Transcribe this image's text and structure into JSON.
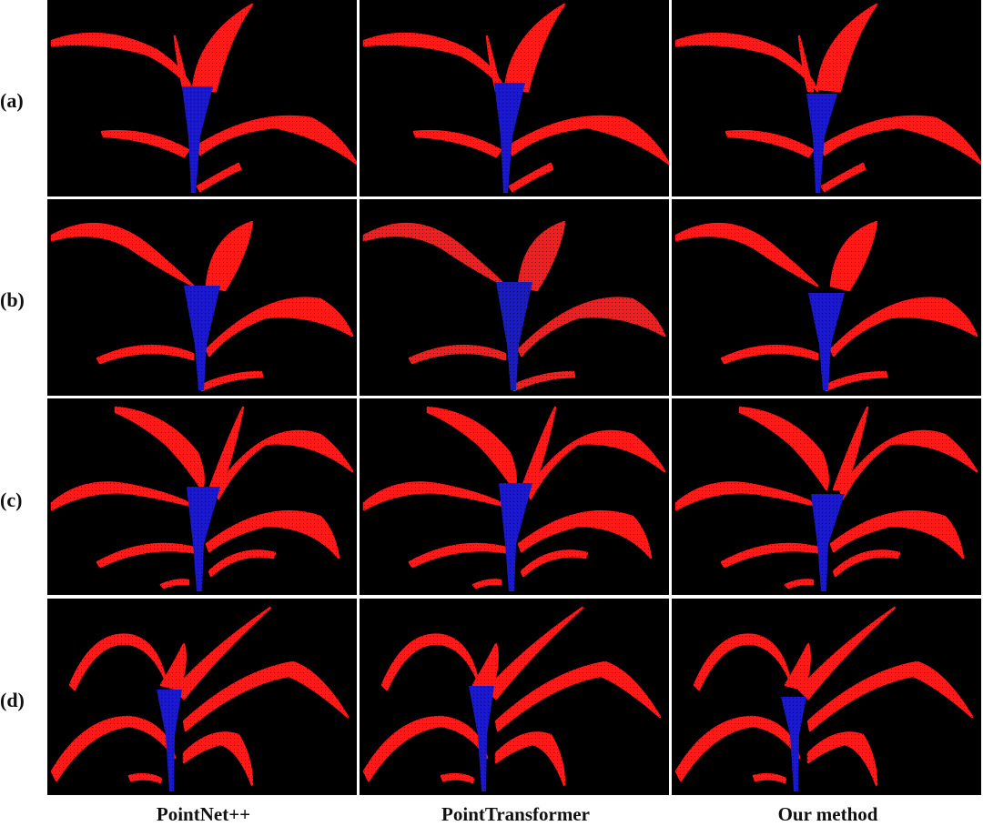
{
  "figure": {
    "row_labels": [
      "(a)",
      "(b)",
      "(c)",
      "(d)"
    ],
    "column_labels": [
      "PointNet++",
      "PointTransformer",
      "Our method"
    ],
    "colors": {
      "background": "#000000",
      "leaf": "#ff1a1a",
      "stem": "#1a1acc"
    }
  }
}
